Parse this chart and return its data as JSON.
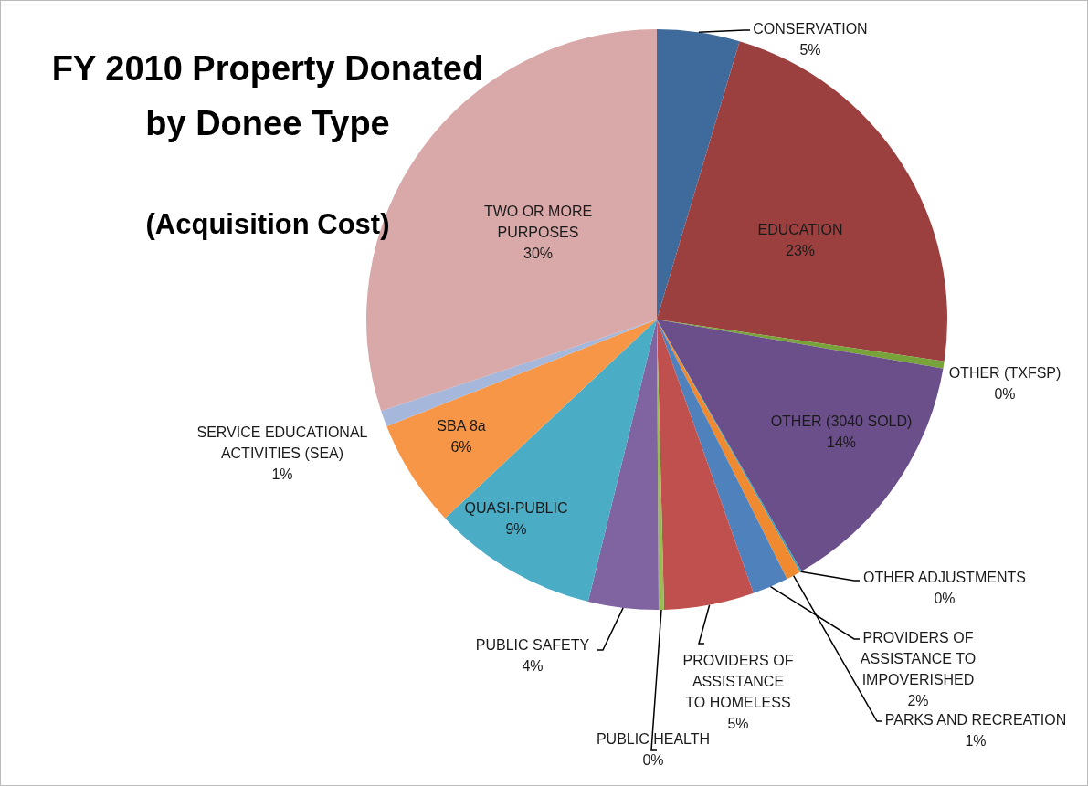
{
  "chart_data": {
    "type": "pie",
    "title": "FY 2010 Property Donated by Donee Type",
    "subtitle": "(Acquisition Cost)",
    "categories": [
      "CONSERVATION",
      "EDUCATION",
      "OTHER (TXFSP)",
      "OTHER (3040 SOLD)",
      "OTHER ADJUSTMENTS",
      "PARKS AND RECREATION",
      "PROVIDERS OF ASSISTANCE TO IMPOVERISHED",
      "PROVIDERS OF ASSISTANCE TO HOMELESS",
      "PUBLIC HEALTH",
      "PUBLIC SAFETY",
      "QUASI-PUBLIC",
      "SBA 8a",
      "SERVICE EDUCATIONAL ACTIVITIES (SEA)",
      "TWO OR MORE PURPOSES"
    ],
    "values": [
      4.6,
      22.7,
      0.4,
      14.0,
      0.1,
      0.8,
      2.0,
      5.0,
      0.3,
      3.9,
      9.2,
      6.0,
      0.9,
      30.1
    ],
    "value_labels": [
      "5%",
      "23%",
      "0%",
      "14%",
      "0%",
      "1%",
      "2%",
      "5%",
      "0%",
      "4%",
      "9%",
      "6%",
      "1%",
      "30%"
    ],
    "colors": [
      "#3f6b9c",
      "#9c3f3f",
      "#77a33a",
      "#6a4f8a",
      "#3fa0b7",
      "#f08a30",
      "#4f81bd",
      "#c0504d",
      "#9bbb59",
      "#8064a2",
      "#4bacc6",
      "#f79646",
      "#a5b8dc",
      "#d9a8a8"
    ]
  }
}
